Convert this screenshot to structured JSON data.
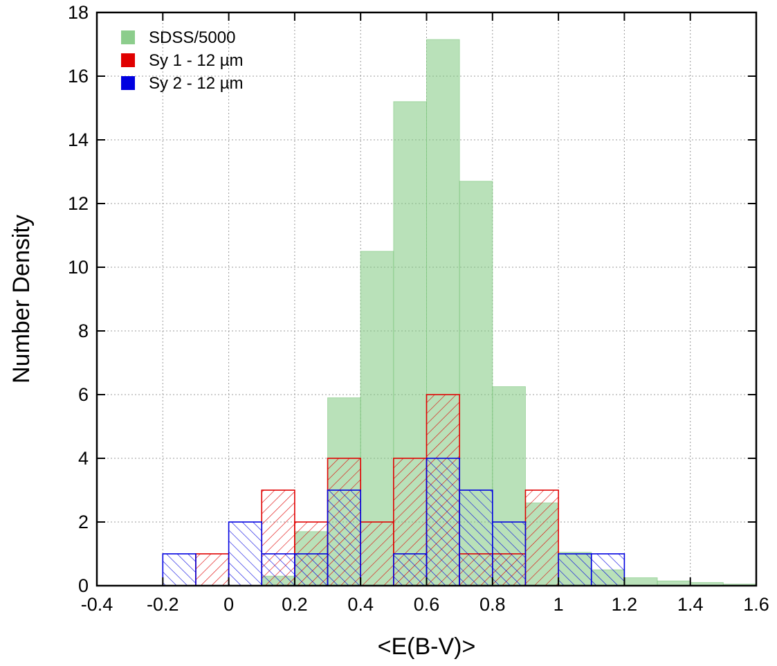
{
  "chart_data": {
    "type": "bar",
    "xlabel": "<E(B-V)>",
    "ylabel": "Number Density",
    "xlim": [
      -0.4,
      1.6
    ],
    "ylim": [
      0,
      18
    ],
    "xticks": [
      "-0.4",
      "-0.2",
      "0",
      "0.2",
      "0.4",
      "0.6",
      "0.8",
      "1",
      "1.2",
      "1.4",
      "1.6"
    ],
    "yticks": [
      "0",
      "2",
      "4",
      "6",
      "8",
      "10",
      "12",
      "14",
      "16",
      "18"
    ],
    "grid": true,
    "legend_position": "top-left",
    "bin_width": 0.1,
    "series": [
      {
        "name": "SDSS/5000",
        "color": "#80c880",
        "fill": "solid",
        "bins": [
          [
            0.1,
            0.3
          ],
          [
            0.2,
            1.7
          ],
          [
            0.3,
            5.9
          ],
          [
            0.4,
            10.5
          ],
          [
            0.5,
            15.2
          ],
          [
            0.6,
            17.15
          ],
          [
            0.7,
            12.7
          ],
          [
            0.8,
            6.25
          ],
          [
            0.9,
            2.6
          ],
          [
            1.0,
            1.05
          ],
          [
            1.1,
            0.5
          ],
          [
            1.2,
            0.25
          ],
          [
            1.3,
            0.15
          ],
          [
            1.4,
            0.1
          ],
          [
            1.5,
            0.05
          ]
        ]
      },
      {
        "name": "Sy 1 - 12 µm",
        "color": "#e00000",
        "fill": "hatch-right",
        "bins": [
          [
            -0.1,
            1
          ],
          [
            0.1,
            3
          ],
          [
            0.2,
            2
          ],
          [
            0.3,
            4
          ],
          [
            0.4,
            2
          ],
          [
            0.5,
            4
          ],
          [
            0.6,
            6
          ],
          [
            0.7,
            1
          ],
          [
            0.8,
            1
          ],
          [
            0.9,
            3
          ]
        ]
      },
      {
        "name": "Sy 2 - 12 µm",
        "color": "#0000e0",
        "fill": "hatch-left",
        "bins": [
          [
            -0.2,
            1
          ],
          [
            0.0,
            2
          ],
          [
            0.1,
            1
          ],
          [
            0.2,
            1
          ],
          [
            0.3,
            3
          ],
          [
            0.5,
            1
          ],
          [
            0.6,
            4
          ],
          [
            0.7,
            3
          ],
          [
            0.8,
            2
          ],
          [
            1.0,
            1
          ],
          [
            1.1,
            1
          ]
        ]
      }
    ]
  }
}
